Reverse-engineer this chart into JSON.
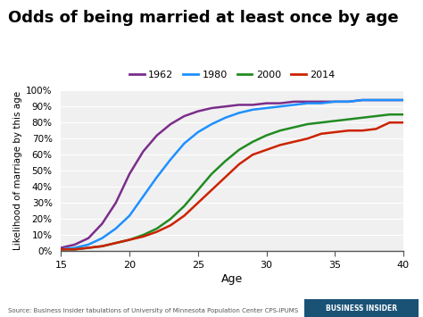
{
  "title": "Odds of being married at least once by age",
  "xlabel": "Age",
  "ylabel": "Likelihood of marriage by this age",
  "source": "Source: Business Insider tabulations of University of Minnesota Population Center CPS-IPUMS",
  "x_min": 15,
  "x_max": 40,
  "y_min": 0.0,
  "y_max": 1.0,
  "xticks": [
    15,
    20,
    25,
    30,
    35,
    40
  ],
  "yticks": [
    0.0,
    0.1,
    0.2,
    0.3,
    0.4,
    0.5,
    0.6,
    0.7,
    0.8,
    0.9,
    1.0
  ],
  "background_color": "#f0f0f0",
  "series": [
    {
      "label": "1962",
      "color": "#7b2d8b",
      "x": [
        15,
        16,
        17,
        18,
        19,
        20,
        21,
        22,
        23,
        24,
        25,
        26,
        27,
        28,
        29,
        30,
        31,
        32,
        33,
        34,
        35,
        36,
        37,
        38,
        39,
        40
      ],
      "y": [
        0.02,
        0.04,
        0.08,
        0.17,
        0.3,
        0.48,
        0.62,
        0.72,
        0.79,
        0.84,
        0.87,
        0.89,
        0.9,
        0.91,
        0.91,
        0.92,
        0.92,
        0.93,
        0.93,
        0.93,
        0.93,
        0.93,
        0.94,
        0.94,
        0.94,
        0.94
      ]
    },
    {
      "label": "1980",
      "color": "#1e90ff",
      "x": [
        15,
        16,
        17,
        18,
        19,
        20,
        21,
        22,
        23,
        24,
        25,
        26,
        27,
        28,
        29,
        30,
        31,
        32,
        33,
        34,
        35,
        36,
        37,
        38,
        39,
        40
      ],
      "y": [
        0.01,
        0.02,
        0.04,
        0.08,
        0.14,
        0.22,
        0.34,
        0.46,
        0.57,
        0.67,
        0.74,
        0.79,
        0.83,
        0.86,
        0.88,
        0.89,
        0.9,
        0.91,
        0.92,
        0.92,
        0.93,
        0.93,
        0.94,
        0.94,
        0.94,
        0.94
      ]
    },
    {
      "label": "2000",
      "color": "#228b22",
      "x": [
        15,
        16,
        17,
        18,
        19,
        20,
        21,
        22,
        23,
        24,
        25,
        26,
        27,
        28,
        29,
        30,
        31,
        32,
        33,
        34,
        35,
        36,
        37,
        38,
        39,
        40
      ],
      "y": [
        0.01,
        0.01,
        0.02,
        0.03,
        0.05,
        0.07,
        0.1,
        0.14,
        0.2,
        0.28,
        0.38,
        0.48,
        0.56,
        0.63,
        0.68,
        0.72,
        0.75,
        0.77,
        0.79,
        0.8,
        0.81,
        0.82,
        0.83,
        0.84,
        0.85,
        0.85
      ]
    },
    {
      "label": "2014",
      "color": "#cc2200",
      "x": [
        15,
        16,
        17,
        18,
        19,
        20,
        21,
        22,
        23,
        24,
        25,
        26,
        27,
        28,
        29,
        30,
        31,
        32,
        33,
        34,
        35,
        36,
        37,
        38,
        39,
        40
      ],
      "y": [
        0.01,
        0.01,
        0.02,
        0.03,
        0.05,
        0.07,
        0.09,
        0.12,
        0.16,
        0.22,
        0.3,
        0.38,
        0.46,
        0.54,
        0.6,
        0.63,
        0.66,
        0.68,
        0.7,
        0.73,
        0.74,
        0.75,
        0.75,
        0.76,
        0.8,
        0.8
      ]
    }
  ]
}
